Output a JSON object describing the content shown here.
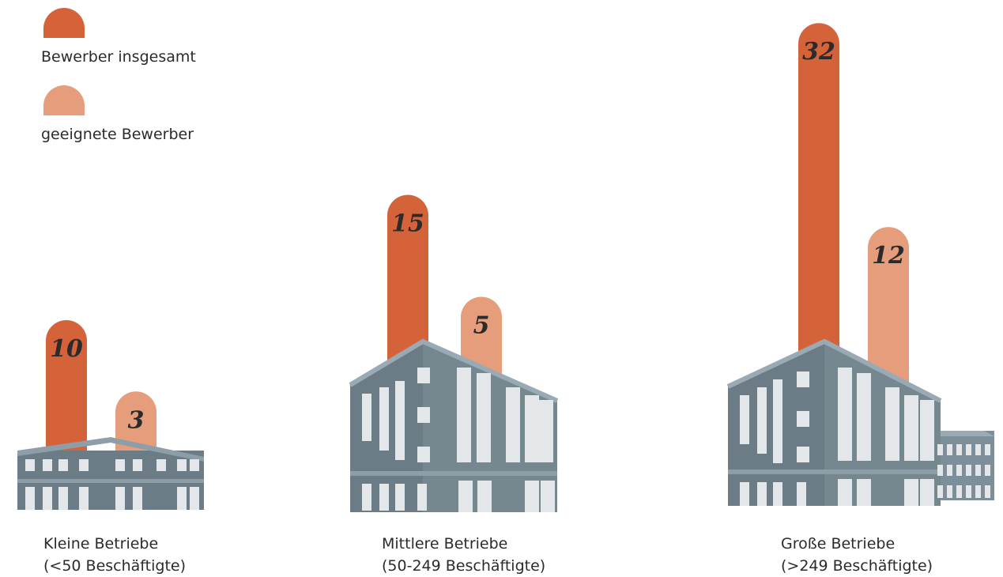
{
  "chart_data": {
    "type": "chimney-bar",
    "categories": [
      "Kleine Betriebe",
      "Mittlere Betriebe",
      "Große Betriebe"
    ],
    "category_notes": [
      "(<50 Beschäftigte)",
      "(50-249 Beschäftigte)",
      "(>249 Beschäftigte)"
    ],
    "series": [
      {
        "name": "Bewerber insgesamt",
        "color": "#d5633a",
        "values": [
          10,
          15,
          32
        ]
      },
      {
        "name": "geeignete Bewerber",
        "color": "#e69d7c",
        "values": [
          3,
          5,
          12
        ]
      }
    ]
  }
}
